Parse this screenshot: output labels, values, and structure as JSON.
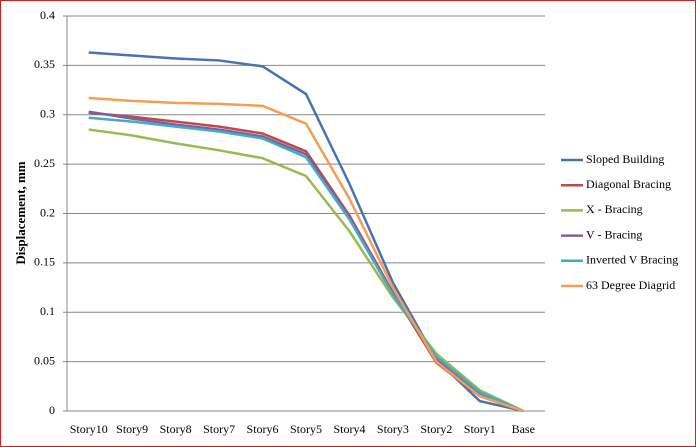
{
  "chart_data": {
    "type": "line",
    "y_label": "Displacement, mm",
    "categories": [
      "Story10",
      "Story9",
      "Story8",
      "Story7",
      "Story6",
      "Story5",
      "Story4",
      "Story3",
      "Story2",
      "Story1",
      "Base"
    ],
    "series": [
      {
        "name": "Sloped Building",
        "color": "#4a72b0",
        "values": [
          0.363,
          0.36,
          0.357,
          0.355,
          0.349,
          0.321,
          0.23,
          0.13,
          0.052,
          0.01,
          0
        ]
      },
      {
        "name": "Diagonal Bracing",
        "color": "#be4b48",
        "values": [
          0.302,
          0.298,
          0.293,
          0.288,
          0.281,
          0.263,
          0.198,
          0.12,
          0.049,
          0.015,
          0
        ]
      },
      {
        "name": "X - Bracing",
        "color": "#98b954",
        "values": [
          0.285,
          0.279,
          0.271,
          0.264,
          0.256,
          0.238,
          0.182,
          0.115,
          0.058,
          0.021,
          0
        ]
      },
      {
        "name": "V - Bracing",
        "color": "#7d60a0",
        "values": [
          0.303,
          0.296,
          0.29,
          0.285,
          0.278,
          0.26,
          0.196,
          0.119,
          0.052,
          0.018,
          0
        ]
      },
      {
        "name": "Inverted V Bracing",
        "color": "#46aac5",
        "values": [
          0.297,
          0.293,
          0.288,
          0.283,
          0.276,
          0.257,
          0.194,
          0.118,
          0.055,
          0.019,
          0
        ]
      },
      {
        "name": "63 Degree Diagrid",
        "color": "#f59d56",
        "values": [
          0.317,
          0.314,
          0.312,
          0.311,
          0.309,
          0.291,
          0.215,
          0.125,
          0.05,
          0.015,
          0
        ]
      }
    ],
    "ylim": [
      0,
      0.4
    ],
    "yticks": [
      0,
      0.05,
      0.1,
      0.15,
      0.2,
      0.25,
      0.3,
      0.35,
      0.4
    ],
    "grid": true,
    "legend": "right"
  }
}
